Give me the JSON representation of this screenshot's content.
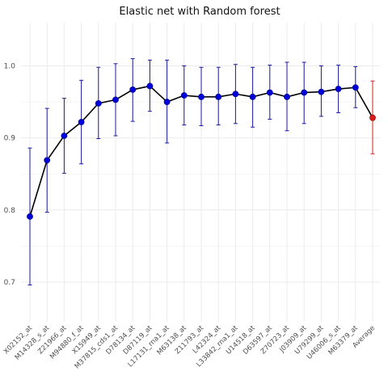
{
  "chart_data": {
    "type": "line",
    "title": "Elastic net  with Random forest",
    "xlabel": "",
    "ylabel": "",
    "ylim": [
      0.645,
      1.06
    ],
    "yticks": [
      0.7,
      0.8,
      0.9,
      1.0
    ],
    "ytick_labels": [
      "0.7",
      "0.8",
      "0.9",
      "1.0"
    ],
    "grid": true,
    "categories": [
      "X02152_at",
      "M14328_s_at",
      "Z21966_at",
      "M94880_f_at",
      "X15949_at",
      "M37815_cds1_at",
      "D78134_at",
      "D87119_at",
      "L17131_rna1_at",
      "M63138_at",
      "Z11793_at",
      "L42324_at",
      "L33842_rna1_at",
      "U14518_at",
      "D63597_at",
      "Z70723_at",
      "J03909_at",
      "U79299_at",
      "U46006_s_at",
      "M63379_at",
      "Average"
    ],
    "series": [
      {
        "values": [
          0.791,
          0.869,
          0.903,
          0.922,
          0.948,
          0.953,
          0.967,
          0.972,
          0.95,
          0.959,
          0.957,
          0.957,
          0.961,
          0.957,
          0.963,
          0.957,
          0.963,
          0.964,
          0.968,
          0.97,
          0.928
        ],
        "lower": [
          0.696,
          0.797,
          0.851,
          0.864,
          0.899,
          0.903,
          0.923,
          0.937,
          0.893,
          0.918,
          0.917,
          0.918,
          0.92,
          0.915,
          0.926,
          0.91,
          0.92,
          0.93,
          0.935,
          0.942,
          0.878
        ],
        "upper": [
          0.886,
          0.941,
          0.955,
          0.98,
          0.998,
          1.003,
          1.01,
          1.008,
          1.008,
          1.0,
          0.998,
          0.998,
          1.002,
          0.998,
          1.001,
          1.005,
          1.005,
          1.0,
          1.001,
          0.999,
          0.979
        ]
      }
    ],
    "colors": {
      "point": "#0000dd",
      "point_outline": "#00007a",
      "errorbar": "#1a1a9e",
      "line": "#000000",
      "average_point": "#dd1c1c",
      "average_errorbar": "#cc2222",
      "grid": "#ebebeb"
    }
  }
}
